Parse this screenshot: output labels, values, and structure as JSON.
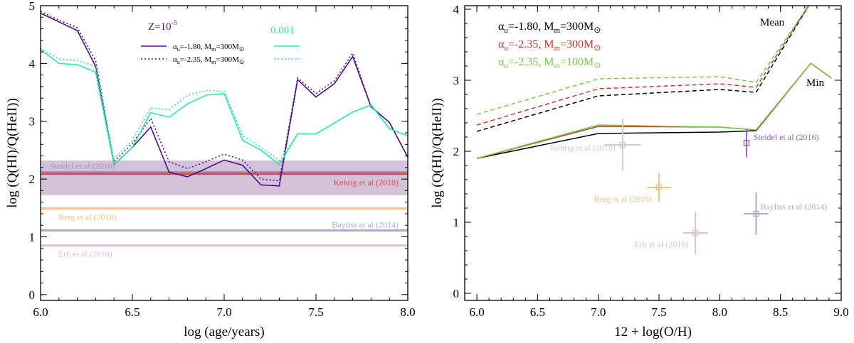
{
  "chart_data": [
    {
      "type": "line",
      "xlabel": "log (age/years)",
      "ylabel": "log (Q(HI)/Q(HeII))",
      "xlim": [
        6.0,
        8.0
      ],
      "ylim": [
        -0.1,
        5.0
      ],
      "xticks": [
        6.0,
        6.5,
        7.0,
        7.5,
        8.0
      ],
      "xtick_labels": [
        "6.0",
        "6.5",
        "7.0",
        "7.5",
        "8.0"
      ],
      "yticks": [
        0,
        1,
        2,
        3,
        4,
        5
      ],
      "ytick_labels": [
        "0",
        "1",
        "2",
        "3",
        "4",
        "5"
      ],
      "legend": {
        "z_low_label": "Z=10",
        "z_low_exp": "-5",
        "z_high_label": "0.001",
        "entry1_label": "α",
        "entry1_sub": "u",
        "entry1_rest": "=-1.80, M",
        "entry1_sub2": "m",
        "entry1_tail": "=300M",
        "entry1_sun": "⊙",
        "entry2_label": "α",
        "entry2_sub": "u",
        "entry2_rest": "=-2.35, M",
        "entry2_sub2": "m",
        "entry2_tail": "=300M",
        "entry2_sun": "⊙"
      },
      "x": [
        6.0,
        6.1,
        6.2,
        6.3,
        6.4,
        6.5,
        6.6,
        6.7,
        6.8,
        6.9,
        7.0,
        7.1,
        7.2,
        7.3,
        7.4,
        7.5,
        7.6,
        7.7,
        7.8,
        7.9,
        8.0
      ],
      "series": [
        {
          "name": "Z=1e-5, αu=-1.80",
          "color": "#4b0f8c",
          "dash": "solid",
          "values": [
            4.87,
            4.72,
            4.57,
            3.95,
            2.25,
            2.55,
            2.9,
            2.12,
            2.04,
            2.18,
            2.33,
            2.24,
            1.9,
            1.88,
            3.72,
            3.42,
            3.65,
            4.12,
            3.25,
            2.98,
            2.38
          ]
        },
        {
          "name": "Z=1e-5, αu=-2.35",
          "color": "#4b0f8c",
          "dash": "dotted",
          "values": [
            4.9,
            4.75,
            4.62,
            4.05,
            2.3,
            2.62,
            3.05,
            2.3,
            2.18,
            2.3,
            2.43,
            2.33,
            2.0,
            1.97,
            3.75,
            3.48,
            3.7,
            4.18,
            3.25,
            2.98,
            2.38
          ]
        },
        {
          "name": "Z=0.001, αu=-1.80",
          "color": "#2ee8a6",
          "dash": "solid",
          "values": [
            4.24,
            4.0,
            3.98,
            3.85,
            2.25,
            2.55,
            3.15,
            3.07,
            3.3,
            3.45,
            3.48,
            2.67,
            2.5,
            2.25,
            2.78,
            2.78,
            2.97,
            3.16,
            3.28,
            2.87,
            2.75
          ]
        },
        {
          "name": "Z=0.001, αu=-2.35",
          "color": "#2ee8a6",
          "dash": "dotted",
          "values": [
            4.26,
            4.08,
            4.05,
            3.95,
            2.35,
            2.68,
            3.23,
            3.2,
            3.45,
            3.53,
            3.52,
            2.75,
            2.55,
            2.32,
            2.78,
            2.78,
            2.97,
            3.16,
            3.28,
            2.87,
            2.75
          ]
        }
      ],
      "references": [
        {
          "label": "Steidel et al (2016)",
          "value": 2.12,
          "color": "#b190b8",
          "band": [
            1.72,
            2.32
          ]
        },
        {
          "label": "Kehrig et al (2018)",
          "value": 2.09,
          "color": "#e04848"
        },
        {
          "label": "Berg et al (2018)",
          "value": 1.49,
          "color": "#f5c08a"
        },
        {
          "label": "Bayliss et al (2014)",
          "value": 1.11,
          "color": "#b4a6cc"
        },
        {
          "label": "Erb et al (2010)",
          "value": 0.85,
          "color": "#d4c2d6"
        }
      ]
    },
    {
      "type": "line",
      "xlabel": "12 + log(O/H)",
      "ylabel": "log (Q(HI)/Q(HeII))",
      "xlim": [
        5.9,
        9.0
      ],
      "ylim": [
        -0.1,
        4.05
      ],
      "xticks": [
        6.0,
        6.5,
        7.0,
        7.5,
        8.0,
        8.5,
        9.0
      ],
      "xtick_labels": [
        "6.0",
        "6.5",
        "7.0",
        "7.5",
        "8.0",
        "8.5",
        "9.0"
      ],
      "yticks": [
        0,
        1,
        2,
        3,
        4
      ],
      "ytick_labels": [
        "0",
        "1",
        "2",
        "3",
        "4"
      ],
      "legend": [
        {
          "alpha": "α",
          "sub": "u",
          "rest": "=-1.80, M",
          "sub2": "m",
          "tail": "=300M",
          "sun": "⊙",
          "color": "#000000"
        },
        {
          "alpha": "α",
          "sub": "u",
          "rest": "=-2.35, M",
          "sub2": "m",
          "tail": "=300M",
          "sun": "⊙",
          "color": "#c0392b"
        },
        {
          "alpha": "α",
          "sub": "u",
          "rest": "=-2.35, M",
          "sub2": "m",
          "tail": "=100M",
          "sun": "⊙",
          "color": "#7ac943"
        }
      ],
      "annotations": {
        "mean": "Mean",
        "min": "Min"
      },
      "series": [
        {
          "name": "Mean αu=-1.80 300",
          "color": "#000000",
          "dash": "dashed",
          "x": [
            6.0,
            7.0,
            8.0,
            8.3,
            8.75
          ],
          "values": [
            2.28,
            2.78,
            2.87,
            2.83,
            4.1
          ]
        },
        {
          "name": "Mean αu=-2.35 300",
          "color": "#c0392b",
          "dash": "dashed",
          "x": [
            6.0,
            7.0,
            8.0,
            8.3,
            8.75
          ],
          "values": [
            2.37,
            2.88,
            2.95,
            2.9,
            4.1
          ]
        },
        {
          "name": "Mean αu=-2.35 100",
          "color": "#7ac943",
          "dash": "dashed",
          "x": [
            6.0,
            7.0,
            8.0,
            8.3,
            8.75
          ],
          "values": [
            2.52,
            3.02,
            3.05,
            2.97,
            4.1
          ]
        },
        {
          "name": "Min αu=-1.80 300",
          "color": "#000000",
          "dash": "solid",
          "x": [
            6.0,
            7.0,
            8.0,
            8.3,
            8.75,
            8.92
          ],
          "values": [
            1.9,
            2.25,
            2.27,
            2.29,
            3.24,
            3.03
          ]
        },
        {
          "name": "Min αu=-2.35 300",
          "color": "#c0392b",
          "dash": "solid",
          "x": [
            6.0,
            7.0,
            8.0,
            8.3,
            8.75,
            8.92
          ],
          "values": [
            1.9,
            2.35,
            2.34,
            2.3,
            3.24,
            3.03
          ]
        },
        {
          "name": "Min αu=-2.35 100",
          "color": "#7ac943",
          "dash": "solid",
          "x": [
            6.0,
            7.0,
            8.0,
            8.3,
            8.75,
            8.92
          ],
          "values": [
            1.9,
            2.37,
            2.34,
            2.3,
            3.24,
            3.03
          ]
        }
      ],
      "points": [
        {
          "label": "Kehrig et al (2018)",
          "x": 7.2,
          "y": 2.09,
          "xerr": 0.15,
          "yerr": 0.37,
          "color": "#d8c6d8"
        },
        {
          "label": "Steidel et al (2016)",
          "x": 8.22,
          "y": 2.12,
          "xerr": 0.0,
          "yerr": 0.2,
          "color": "#a060b0"
        },
        {
          "label": "Berg et al (2018)",
          "x": 7.5,
          "y": 1.49,
          "xerr": 0.1,
          "yerr": 0.2,
          "color": "#f5c08a"
        },
        {
          "label": "Erb et al (2010)",
          "x": 7.8,
          "y": 0.85,
          "xerr": 0.1,
          "yerr": 0.3,
          "color": "#d4c2d6"
        },
        {
          "label": "Bayliss et al (2014)",
          "x": 8.3,
          "y": 1.12,
          "xerr": 0.1,
          "yerr": 0.3,
          "color": "#b4a6cc"
        }
      ]
    }
  ]
}
